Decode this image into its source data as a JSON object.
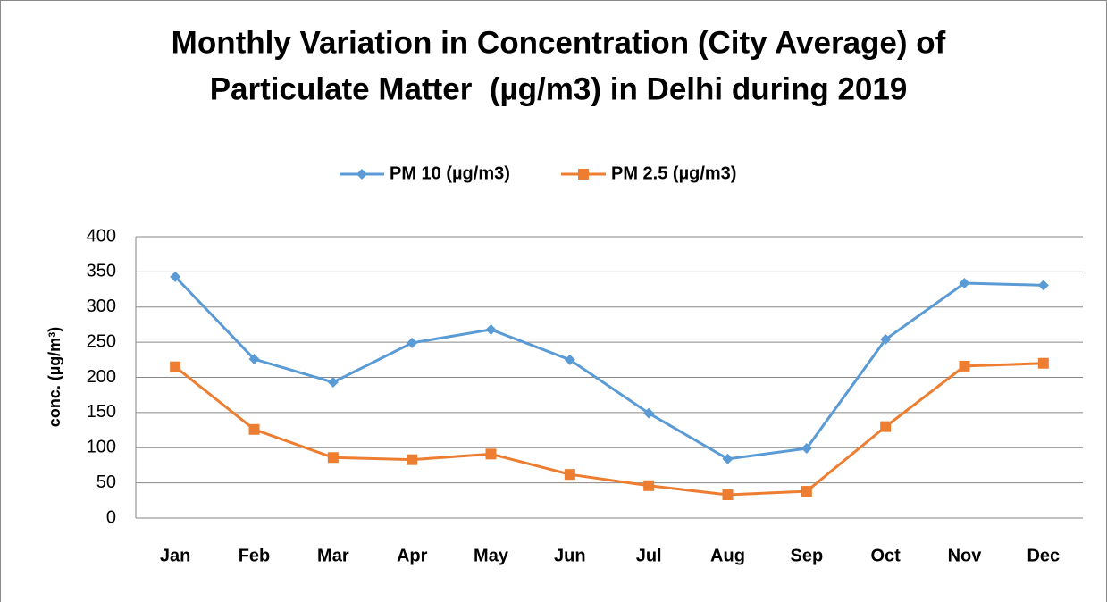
{
  "chart_data": {
    "type": "line",
    "title": [
      "Monthly Variation in Concentration (City Average) of",
      "Particulate Matter  (µg/m3) in Delhi during 2019"
    ],
    "y_label": "conc. (µg/m³)",
    "categories": [
      "Jan",
      "Feb",
      "Mar",
      "Apr",
      "May",
      "Jun",
      "Jul",
      "Aug",
      "Sep",
      "Oct",
      "Nov",
      "Dec"
    ],
    "series": [
      {
        "name": "PM 10 (µg/m3)",
        "color": "#5b9bd5",
        "marker": "diamond",
        "values": [
          343,
          226,
          193,
          249,
          268,
          225,
          149,
          84,
          99,
          254,
          334,
          331
        ]
      },
      {
        "name": "PM 2.5 (µg/m3)",
        "color": "#ed7d31",
        "marker": "square",
        "values": [
          215,
          126,
          86,
          83,
          91,
          62,
          46,
          33,
          38,
          130,
          216,
          220
        ]
      }
    ],
    "ylim": [
      0,
      400
    ],
    "yticks": [
      0,
      50,
      100,
      150,
      200,
      250,
      300,
      350,
      400
    ],
    "grid": true,
    "legend": "top"
  }
}
